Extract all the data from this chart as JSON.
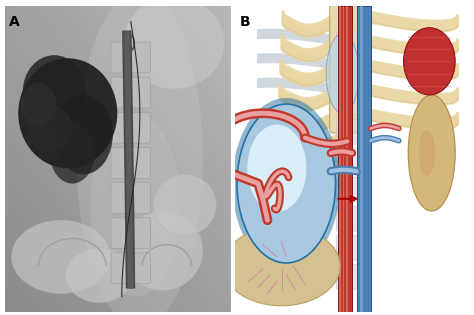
{
  "fig_width": 4.74,
  "fig_height": 3.15,
  "dpi": 100,
  "background_color": "#ffffff",
  "label_A": "A",
  "label_B": "B",
  "label_fontsize": 10,
  "label_fontweight": "bold",
  "colors": {
    "rib_bone": "#E8D5A0",
    "rib_bone_edge": "#C8B070",
    "rib_cartilage": "#C8D0D8",
    "artery_red": "#C0392B",
    "artery_light": "#E8A0A0",
    "vein_blue": "#4A7FB5",
    "vein_light": "#A0C0E0",
    "kidney_tan": "#D4B87A",
    "kidney_tan_edge": "#B89050",
    "fistula_blue": "#A8C8E0",
    "fistula_blue_dark": "#2471A3",
    "fistula_inner": "#D8EEF8",
    "liver_tan": "#D4C090",
    "liver_tan_edge": "#B8A060",
    "red_arrow": "#AA0000",
    "spine_beige": "#E8D8B0",
    "spine_gray": "#C0C8CC",
    "red_organ": "#C03030",
    "red_organ_edge": "#901010",
    "vessel_stripe_light": "#E8B0B0",
    "xray_bg": "#a8a8a8"
  }
}
